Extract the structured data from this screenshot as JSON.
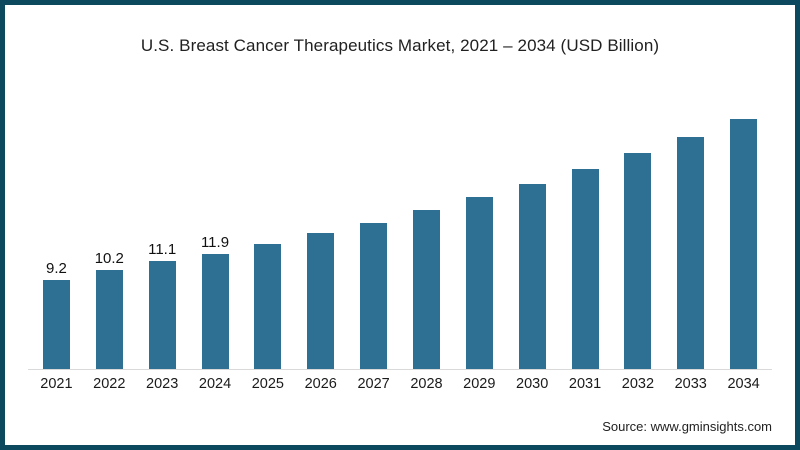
{
  "frame": {
    "border_color": "#0d495e",
    "background_color": "#ffffff"
  },
  "title": "U.S. Breast Cancer Therapeutics Market, 2021 – 2034 (USD Billion)",
  "source": "Source: www.gminsights.com",
  "chart_data": {
    "type": "bar",
    "title": "U.S. Breast Cancer Therapeutics Market, 2021 – 2034 (USD Billion)",
    "categories": [
      "2021",
      "2022",
      "2023",
      "2024",
      "2025",
      "2026",
      "2027",
      "2028",
      "2029",
      "2030",
      "2031",
      "2032",
      "2033",
      "2034"
    ],
    "values": [
      9.2,
      10.2,
      11.1,
      11.9,
      12.9,
      14.0,
      15.1,
      16.4,
      17.7,
      19.1,
      20.6,
      22.3,
      23.9,
      25.8
    ],
    "data_labels": [
      "9.2",
      "10.2",
      "11.1",
      "11.9",
      "",
      "",
      "",
      "",
      "",
      "",
      "",
      "",
      "",
      ""
    ],
    "xlabel": "",
    "ylabel": "",
    "ylim": [
      0,
      29
    ],
    "grid": false,
    "legend_position": "none",
    "bar_color": "#2e7093",
    "axis_line_color": "#d9d9d9"
  }
}
